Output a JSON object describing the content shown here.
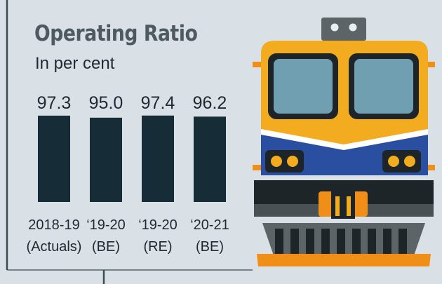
{
  "chart_data": {
    "type": "bar",
    "title": "Operating Ratio",
    "subtitle": "In per cent",
    "categories": [
      [
        "2018-19",
        "(Actuals)"
      ],
      [
        "‘19-20",
        "(BE)"
      ],
      [
        "‘19-20",
        "(RE)"
      ],
      [
        "‘20-21",
        "(BE)"
      ]
    ],
    "values": [
      97.3,
      95.0,
      97.4,
      96.2
    ],
    "value_labels": [
      "97.3",
      "95.0",
      "97.4",
      "96.2"
    ],
    "ylim": [
      0,
      100
    ],
    "bar_color": "#162c36",
    "grid": false,
    "legend": "none"
  },
  "colors": {
    "background": "#d9e1e6",
    "title": "#4e5a60",
    "text": "#1f2a30",
    "axis_line": "#3b4b52"
  },
  "illustration": {
    "name": "locomotive-front-illustration",
    "colors": {
      "yellow": "#f3ab1f",
      "orange": "#f08f18",
      "blue": "#2a4fa0",
      "window": "#6f9fb0",
      "dark": "#1d2529",
      "grey": "#5d6468"
    }
  }
}
